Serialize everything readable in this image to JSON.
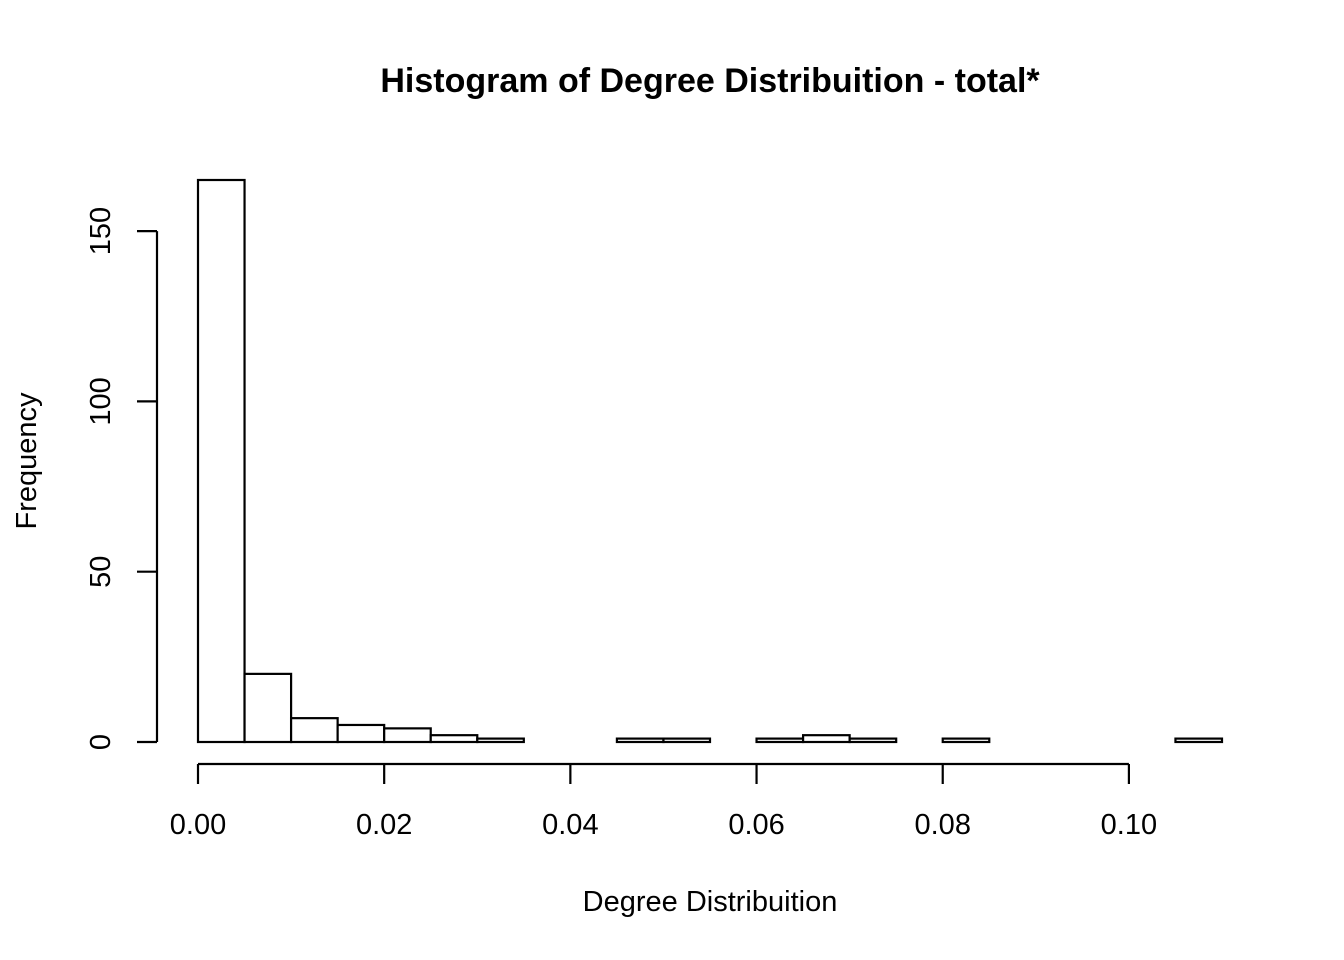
{
  "chart_data": {
    "type": "bar",
    "title": "Histogram of Degree Distribuition - total*",
    "xlabel": "Degree Distribuition",
    "ylabel": "Frequency",
    "bins": [
      {
        "start": 0.0,
        "end": 0.005,
        "count": 165
      },
      {
        "start": 0.005,
        "end": 0.01,
        "count": 20
      },
      {
        "start": 0.01,
        "end": 0.015,
        "count": 7
      },
      {
        "start": 0.015,
        "end": 0.02,
        "count": 5
      },
      {
        "start": 0.02,
        "end": 0.025,
        "count": 4
      },
      {
        "start": 0.025,
        "end": 0.03,
        "count": 2
      },
      {
        "start": 0.03,
        "end": 0.035,
        "count": 1
      },
      {
        "start": 0.035,
        "end": 0.04,
        "count": 0
      },
      {
        "start": 0.04,
        "end": 0.045,
        "count": 0
      },
      {
        "start": 0.045,
        "end": 0.05,
        "count": 1
      },
      {
        "start": 0.05,
        "end": 0.055,
        "count": 1
      },
      {
        "start": 0.055,
        "end": 0.06,
        "count": 0
      },
      {
        "start": 0.06,
        "end": 0.065,
        "count": 1
      },
      {
        "start": 0.065,
        "end": 0.07,
        "count": 2
      },
      {
        "start": 0.07,
        "end": 0.075,
        "count": 1
      },
      {
        "start": 0.075,
        "end": 0.08,
        "count": 0
      },
      {
        "start": 0.08,
        "end": 0.085,
        "count": 1
      },
      {
        "start": 0.085,
        "end": 0.09,
        "count": 0
      },
      {
        "start": 0.09,
        "end": 0.095,
        "count": 0
      },
      {
        "start": 0.095,
        "end": 0.1,
        "count": 0
      },
      {
        "start": 0.1,
        "end": 0.105,
        "count": 0
      },
      {
        "start": 0.105,
        "end": 0.11,
        "count": 1
      }
    ],
    "xlim": [
      0,
      0.11
    ],
    "ylim": [
      0,
      165
    ],
    "x_ticks": [
      0.0,
      0.02,
      0.04,
      0.06,
      0.08,
      0.1
    ],
    "x_tick_labels": [
      "0.00",
      "0.02",
      "0.04",
      "0.06",
      "0.08",
      "0.10"
    ],
    "y_ticks": [
      0,
      50,
      100,
      150
    ],
    "y_tick_labels": [
      "0",
      "50",
      "100",
      "150"
    ],
    "grid": false,
    "legend": "none"
  }
}
